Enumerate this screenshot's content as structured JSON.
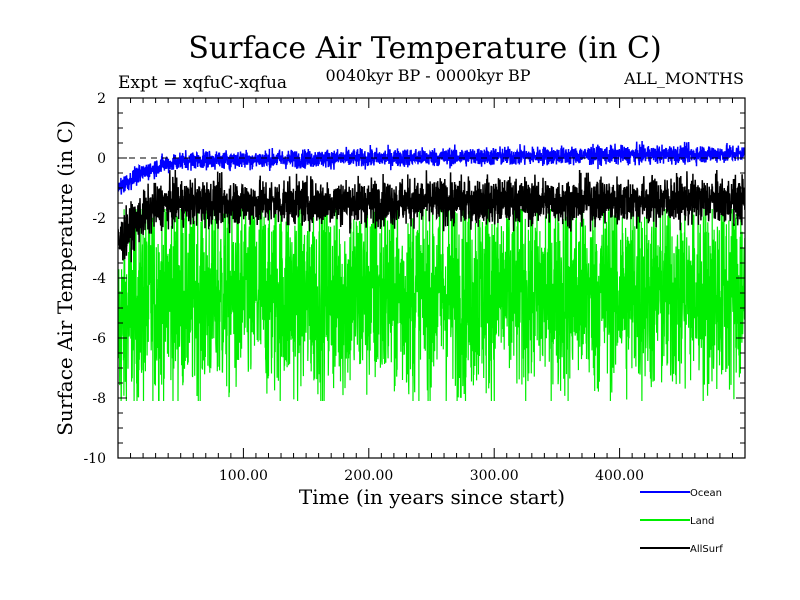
{
  "chart_data": {
    "type": "line",
    "title": "Surface Air Temperature (in C)",
    "experiment_label": "Expt = xqfuC-xqfua",
    "subtitle": "0040kyr BP - 0000kyr BP",
    "season_label": "ALL_MONTHS",
    "xlabel": "Time (in years since start)",
    "ylabel": "Surface Air Temperature (in C)",
    "xlim": [
      0,
      500
    ],
    "ylim": [
      -10,
      2
    ],
    "x_ticks": [
      100,
      200,
      300,
      400
    ],
    "x_tick_labels": [
      "100.00",
      "200.00",
      "300.00",
      "400.00"
    ],
    "y_ticks": [
      2,
      0,
      -2,
      -4,
      -6,
      -8,
      -10
    ],
    "y_tick_labels": [
      "2",
      "0",
      "-2",
      "-4",
      "-6",
      "-8",
      "-10"
    ],
    "reference_line_y": 0,
    "legend_position": "bottom-right",
    "series": [
      {
        "name": "Land",
        "color": "#00ee00",
        "start_mean": -5.8,
        "end_mean": -4.6,
        "ramp_years": 40,
        "amplitude": 2.4,
        "min": -8.1,
        "max": -1.7
      },
      {
        "name": "AllSurf",
        "color": "#000000",
        "start_mean": -2.9,
        "end_mean": -1.5,
        "ramp_years": 45,
        "amplitude": 0.55,
        "min": -4.0,
        "max": -0.4
      },
      {
        "name": "Ocean",
        "color": "#0000ff",
        "start_mean": -1.0,
        "end_mean": -0.1,
        "ramp_years": 60,
        "amplitude": 0.22,
        "min": -1.8,
        "max": 0.6
      }
    ],
    "legend": [
      {
        "name": "Ocean",
        "color": "#0000ff"
      },
      {
        "name": "Land",
        "color": "#00ee00"
      },
      {
        "name": "AllSurf",
        "color": "#000000"
      }
    ]
  }
}
